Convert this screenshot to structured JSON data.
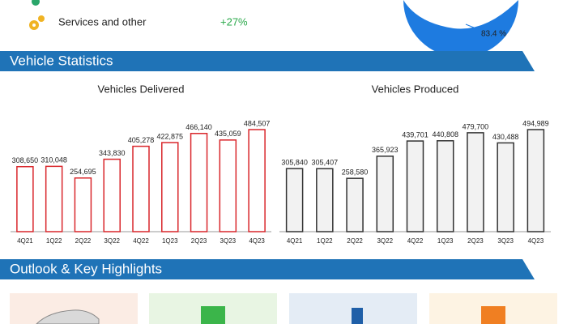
{
  "top": {
    "row_label": "Services and other",
    "row_value": "+27%",
    "pie_label": "83.4 %"
  },
  "sections": {
    "stats": "Vehicle Statistics",
    "outlook": "Outlook & Key Highlights"
  },
  "chart_data": [
    {
      "type": "bar",
      "title": "Vehicles Delivered",
      "color": "#ffffff",
      "edge": "#d9262b",
      "categories": [
        "4Q21",
        "1Q22",
        "2Q22",
        "3Q22",
        "4Q22",
        "1Q23",
        "2Q23",
        "3Q23",
        "4Q23"
      ],
      "values": [
        308650,
        310048,
        254695,
        343830,
        405278,
        422875,
        466140,
        435059,
        484507
      ],
      "value_labels": [
        "308,650",
        "310,048",
        "254,695",
        "343,830",
        "405,278",
        "422,875",
        "466,140",
        "435,059",
        "484,507"
      ]
    },
    {
      "type": "bar",
      "title": "Vehicles Produced",
      "color": "#f2f2f2",
      "edge": "#333333",
      "categories": [
        "4Q21",
        "1Q22",
        "2Q22",
        "3Q22",
        "4Q22",
        "1Q23",
        "2Q23",
        "3Q23",
        "4Q23"
      ],
      "values": [
        305840,
        305407,
        258580,
        365923,
        439701,
        440808,
        479700,
        430488,
        494989
      ],
      "value_labels": [
        "305,840",
        "305,407",
        "258,580",
        "365,923",
        "439,701",
        "440,808",
        "479,700",
        "430,488",
        "494,989"
      ]
    }
  ]
}
